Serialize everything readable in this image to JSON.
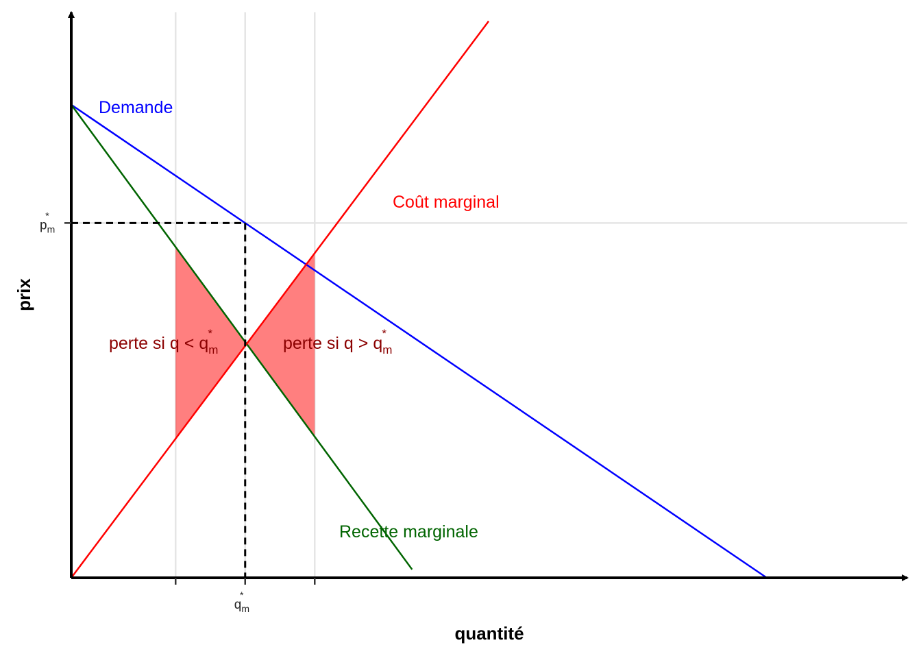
{
  "chart_data": {
    "type": "line",
    "xlabel": "quantité",
    "ylabel": "prix",
    "xlim": [
      0,
      12
    ],
    "ylim": [
      0,
      8.2
    ],
    "grid": "major lines at marked ticks only",
    "colors": {
      "demand": "#0000ff",
      "marginal_cost": "#ff0000",
      "marginal_revenue": "#006400",
      "loss_area": "#ff0000",
      "loss_text": "#8b0000",
      "grid": "#e5e5e5",
      "axis": "#000000"
    },
    "series": [
      {
        "name": "Demande",
        "x": [
          0,
          10
        ],
        "y": [
          6.8,
          0
        ]
      },
      {
        "name": "Recette marginale",
        "x": [
          0,
          4.9
        ],
        "y": [
          6.8,
          0.12
        ]
      },
      {
        "name": "Coût marginal",
        "x": [
          0,
          6
        ],
        "y": [
          0,
          8
        ]
      }
    ],
    "x_ticks": [
      {
        "value": 1.5,
        "label": ""
      },
      {
        "value": 2.5,
        "label": "q",
        "sub": "m",
        "sup": "*"
      },
      {
        "value": 3.5,
        "label": ""
      }
    ],
    "y_ticks": [
      {
        "value": 5.1,
        "label": "p",
        "sub": "m",
        "sup": "*"
      }
    ],
    "optimum": {
      "q": 2.5,
      "p": 5.1,
      "mc_mr_price": 3.33
    },
    "loss_areas": [
      {
        "x_from": 1.5,
        "x_to": 2.5,
        "lower": "Coût marginal",
        "upper": "Recette marginale"
      },
      {
        "x_from": 2.5,
        "x_to": 3.5,
        "lower": "Recette marginale",
        "upper": "Coût marginal"
      }
    ],
    "annotations": [
      {
        "text": "perte si q < q",
        "sub": "m",
        "sup": "*"
      },
      {
        "text": "perte si q > q",
        "sub": "m",
        "sup": "*"
      }
    ]
  }
}
